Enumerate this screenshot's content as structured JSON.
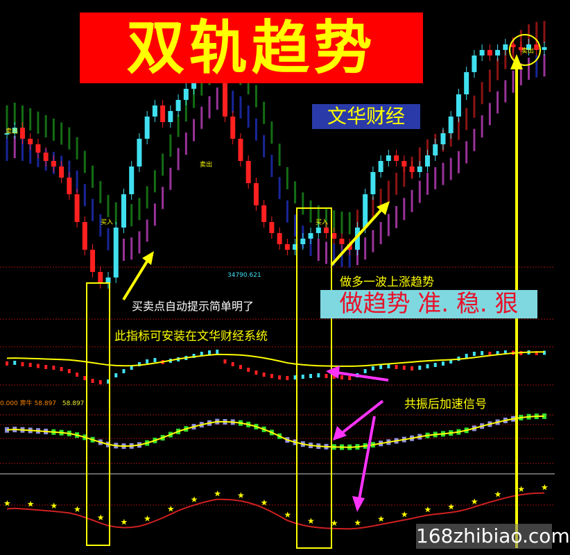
{
  "header": {
    "title": "双轨趋势",
    "brand": "文华财经"
  },
  "annotations": {
    "long_wave": "做多一波上涨趋势",
    "slogan": "做趋势 准. 稳. 狠",
    "auto_signal": "买卖点自动提示简单明了",
    "install_note": "此指标可安装在文华财经系统",
    "resonance": "共振后加速信号",
    "low_price": "34790.621",
    "sell": "卖出",
    "buy": "买入"
  },
  "indicator_readout": {
    "value0": "0.000",
    "name": "奔牛",
    "value1": "58.897",
    "value2": "58.897"
  },
  "watermark": "168zhibiao.com",
  "colors": {
    "up": "#ff2020",
    "down": "#40e0f0",
    "band_green": "#1a8a1a",
    "band_blue": "#2030c0",
    "band_red": "#b01818",
    "band_magenta": "#c040c0",
    "signal": "#ffff00",
    "arrow": "#ff30ff"
  },
  "chart_data": {
    "type": "line",
    "title": "",
    "xlabel": "",
    "ylabel": "",
    "series": [
      {
        "values": [
          62,
          64,
          60,
          58,
          55,
          52,
          50,
          46,
          40,
          30,
          20,
          12,
          8,
          10,
          28,
          40,
          50,
          60,
          68,
          72,
          66,
          70,
          74,
          78,
          84,
          90,
          94,
          96,
          68,
          60,
          52,
          44,
          36,
          30,
          26,
          22,
          20,
          22,
          24,
          26,
          28,
          26,
          24,
          22,
          20,
          28,
          40,
          48,
          52,
          54,
          52,
          50,
          48,
          50,
          54,
          58,
          62,
          68,
          76,
          84,
          90,
          92,
          90,
          92,
          94,
          93,
          92,
          94,
          92,
          93
        ]
      }
    ]
  }
}
